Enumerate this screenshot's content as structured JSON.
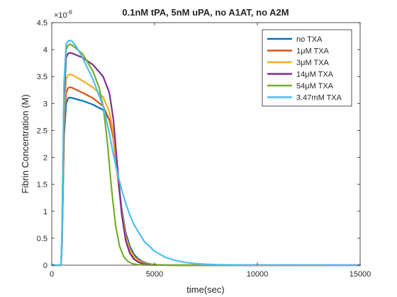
{
  "chart_data": {
    "type": "line",
    "title": "0.1nM tPA, 5nM uPA, no A1AT, no A2M",
    "xlabel": "time(sec)",
    "ylabel": "Fibrin Concentration (M)",
    "y_exponent_label": "×10",
    "y_exponent_power": "-6",
    "xlim": [
      0,
      15000
    ],
    "ylim": [
      0,
      4.5
    ],
    "xticks": [
      0,
      5000,
      10000,
      15000
    ],
    "xtick_labels": [
      "0",
      "5000",
      "10000",
      "15000"
    ],
    "yticks": [
      0,
      0.5,
      1,
      1.5,
      2,
      2.5,
      3,
      3.5,
      4,
      4.5
    ],
    "ytick_labels": [
      "0",
      "0.5",
      "1",
      "1.5",
      "2",
      "2.5",
      "3",
      "3.5",
      "4",
      "4.5"
    ],
    "grid": false,
    "legend_position": "top-right",
    "series": [
      {
        "name": "no TXA",
        "color": "#0072BD",
        "x": [
          0,
          450,
          500,
          550,
          600,
          700,
          800,
          900,
          1000,
          1500,
          2000,
          2500,
          2800,
          3000,
          3200,
          3400,
          3600,
          3800,
          4000,
          4200,
          4400,
          4600,
          4800,
          5000,
          5200,
          5500,
          6000,
          15000
        ],
        "y": [
          0,
          0,
          0.4,
          1.4,
          2.4,
          3.0,
          3.1,
          3.11,
          3.1,
          3.05,
          2.98,
          2.88,
          2.7,
          2.4,
          1.7,
          1.05,
          0.6,
          0.35,
          0.2,
          0.12,
          0.07,
          0.04,
          0.02,
          0.01,
          0.005,
          0.002,
          0,
          0
        ]
      },
      {
        "name": "1μM TXA",
        "color": "#D95319",
        "x": [
          0,
          450,
          500,
          550,
          600,
          700,
          800,
          900,
          1000,
          1500,
          2000,
          2500,
          2800,
          3000,
          3200,
          3400,
          3600,
          3800,
          4000,
          4200,
          4400,
          4600,
          4800,
          5000,
          5200,
          5500,
          6000,
          15000
        ],
        "y": [
          0,
          0,
          0.45,
          1.5,
          2.6,
          3.2,
          3.29,
          3.3,
          3.29,
          3.2,
          3.1,
          2.95,
          2.7,
          2.35,
          1.65,
          1.0,
          0.55,
          0.3,
          0.17,
          0.1,
          0.06,
          0.03,
          0.015,
          0.008,
          0.004,
          0.001,
          0,
          0
        ]
      },
      {
        "name": "3μM TXA",
        "color": "#EDB120",
        "x": [
          0,
          450,
          500,
          550,
          600,
          700,
          800,
          900,
          1000,
          1500,
          2000,
          2500,
          2800,
          3000,
          3200,
          3400,
          3600,
          3800,
          4000,
          4200,
          4400,
          4600,
          4800,
          5000,
          5200,
          5500,
          6000,
          15000
        ],
        "y": [
          0,
          0,
          0.5,
          1.7,
          2.8,
          3.45,
          3.53,
          3.54,
          3.53,
          3.42,
          3.3,
          3.12,
          2.85,
          2.45,
          1.7,
          1.0,
          0.52,
          0.28,
          0.15,
          0.09,
          0.05,
          0.03,
          0.015,
          0.008,
          0.004,
          0.001,
          0,
          0
        ]
      },
      {
        "name": "14μM TXA",
        "color": "#7E2F8E",
        "x": [
          0,
          450,
          500,
          550,
          600,
          700,
          800,
          900,
          1000,
          1500,
          2000,
          2500,
          2800,
          3000,
          3200,
          3400,
          3600,
          3800,
          4000,
          4200,
          4400,
          4600,
          4800,
          5000,
          5200,
          5500,
          6000,
          15000
        ],
        "y": [
          0,
          0,
          0.55,
          1.9,
          3.1,
          3.85,
          3.93,
          3.94,
          3.93,
          3.85,
          3.72,
          3.5,
          3.2,
          2.7,
          1.8,
          0.95,
          0.45,
          0.22,
          0.11,
          0.06,
          0.03,
          0.015,
          0.008,
          0.004,
          0.002,
          0.001,
          0,
          0
        ]
      },
      {
        "name": "54μM TXA",
        "color": "#77AC30",
        "x": [
          0,
          450,
          500,
          550,
          600,
          700,
          800,
          900,
          1000,
          1500,
          2000,
          2300,
          2500,
          2700,
          2900,
          3100,
          3300,
          3500,
          3700,
          3900,
          4100,
          4300,
          4500,
          4700,
          5000,
          5500,
          15000
        ],
        "y": [
          0,
          0,
          0.6,
          2.0,
          3.3,
          4.0,
          4.08,
          4.1,
          4.08,
          3.92,
          3.6,
          3.3,
          2.95,
          2.3,
          1.45,
          0.75,
          0.35,
          0.16,
          0.07,
          0.03,
          0.015,
          0.007,
          0.003,
          0.001,
          0,
          0,
          0
        ]
      },
      {
        "name": "3.47mM TXA",
        "color": "#4DBEEE",
        "x": [
          0,
          450,
          500,
          550,
          600,
          700,
          800,
          900,
          1000,
          1200,
          1500,
          2000,
          2500,
          2800,
          3000,
          3200,
          3400,
          3600,
          3800,
          4000,
          4500,
          5000,
          5500,
          6000,
          6500,
          7000,
          7500,
          8000,
          9000,
          10000,
          15000
        ],
        "y": [
          0,
          0,
          0.6,
          2.1,
          3.4,
          4.1,
          4.16,
          4.17,
          4.15,
          4.05,
          3.85,
          3.45,
          2.95,
          2.45,
          2.05,
          1.7,
          1.4,
          1.15,
          0.93,
          0.75,
          0.44,
          0.26,
          0.15,
          0.09,
          0.05,
          0.03,
          0.018,
          0.01,
          0.004,
          0.001,
          0
        ]
      }
    ]
  }
}
